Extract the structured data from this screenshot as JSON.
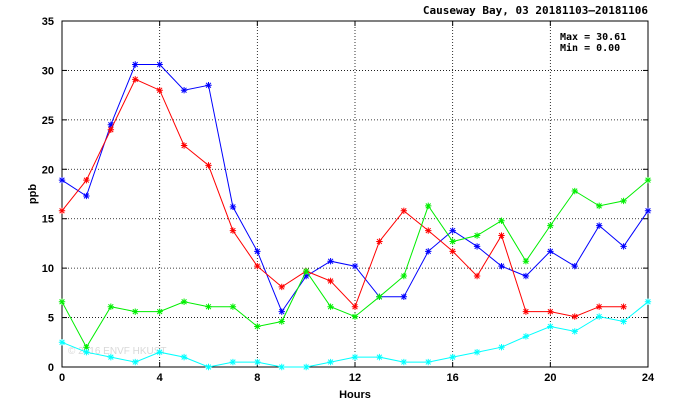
{
  "chart_data": {
    "type": "line",
    "title": "Causeway Bay, 03 20181103–20181106",
    "xlabel": "Hours",
    "ylabel": "ppb",
    "xlim": [
      0,
      24
    ],
    "ylim": [
      0,
      35
    ],
    "x_ticks": [
      0,
      4,
      8,
      12,
      16,
      20,
      24
    ],
    "y_ticks": [
      0,
      5,
      10,
      15,
      20,
      25,
      30,
      35
    ],
    "grid": true,
    "stats": {
      "max_label": "Max = 30.61",
      "min_label": "Min =  0.00"
    },
    "watermark": "© 2016 ENVF HKUST",
    "series": [
      {
        "color": "#0000ff",
        "x": [
          0,
          1,
          2,
          3,
          4,
          5,
          6,
          7,
          8,
          9,
          10,
          11,
          12,
          13,
          14,
          15,
          16,
          17,
          18,
          19,
          20,
          21,
          22,
          23,
          24
        ],
        "values": [
          18.9,
          17.3,
          24.5,
          30.6,
          30.6,
          28.0,
          28.5,
          16.2,
          11.7,
          5.6,
          9.2,
          10.7,
          10.2,
          7.1,
          7.1,
          11.7,
          13.8,
          12.2,
          10.2,
          9.2,
          11.7,
          10.2,
          14.3,
          12.2,
          15.8
        ]
      },
      {
        "color": "#ff0000",
        "x": [
          0,
          1,
          2,
          3,
          4,
          5,
          6,
          7,
          8,
          9,
          10,
          11,
          12,
          13,
          14,
          15,
          16,
          17,
          18,
          19,
          20,
          21,
          22,
          23
        ],
        "values": [
          15.8,
          18.9,
          24.0,
          29.1,
          28.0,
          22.4,
          20.4,
          13.8,
          10.2,
          8.1,
          9.7,
          8.7,
          6.1,
          12.7,
          15.8,
          13.8,
          11.7,
          9.2,
          13.3,
          5.6,
          5.6,
          5.1,
          6.1,
          6.1
        ]
      },
      {
        "color": "#00ee00",
        "x": [
          0,
          1,
          2,
          3,
          4,
          5,
          6,
          7,
          8,
          9,
          10,
          11,
          12,
          13,
          14,
          15,
          16,
          17,
          18,
          19,
          20,
          21,
          22,
          23,
          24
        ],
        "values": [
          6.6,
          2.0,
          6.1,
          5.6,
          5.6,
          6.6,
          6.1,
          6.1,
          4.1,
          4.6,
          9.7,
          6.1,
          5.1,
          7.1,
          9.2,
          16.3,
          12.7,
          13.3,
          14.8,
          10.7,
          14.3,
          17.8,
          16.3,
          16.8,
          18.9
        ]
      },
      {
        "color": "#00ffff",
        "x": [
          0,
          1,
          2,
          3,
          4,
          5,
          6,
          7,
          8,
          9,
          10,
          11,
          12,
          13,
          14,
          15,
          16,
          17,
          18,
          19,
          20,
          21,
          22,
          23,
          24
        ],
        "values": [
          2.5,
          1.5,
          1.0,
          0.5,
          1.5,
          1.0,
          0.0,
          0.5,
          0.5,
          0.0,
          0.0,
          0.5,
          1.0,
          1.0,
          0.5,
          0.5,
          1.0,
          1.5,
          2.0,
          3.1,
          4.1,
          3.6,
          5.1,
          4.6,
          6.6
        ]
      }
    ]
  }
}
